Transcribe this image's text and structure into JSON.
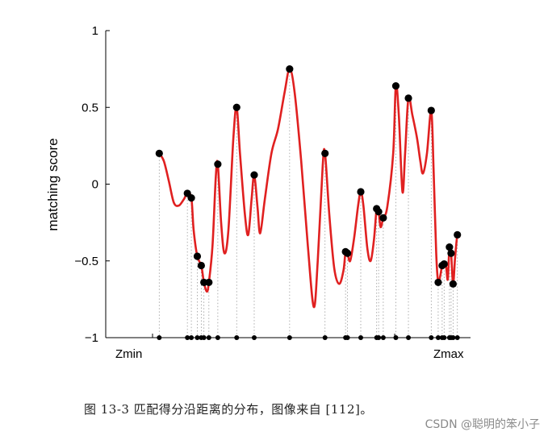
{
  "caption": "图 13-3  匹配得分沿距离的分布，图像来自 [112]。",
  "watermark": "CSDN @聪明的笨小子",
  "chart_data": {
    "type": "line",
    "title": "",
    "xlabel": "",
    "ylabel": "matching score",
    "ylim": [
      -1,
      1
    ],
    "xlim": [
      0,
      100
    ],
    "yticks": [
      -1,
      -0.5,
      0,
      0.5,
      1
    ],
    "ytick_labels": [
      "−1",
      "−0.5",
      "0",
      "0.5",
      "1"
    ],
    "x_end_labels": {
      "start": "Zmin",
      "end": "Zmax"
    },
    "grid": false,
    "colors": {
      "curve": "#e02020",
      "peaks": "#000000",
      "baseline_markers": "#000000",
      "stems": "#9a9a9a"
    },
    "series": [
      {
        "values": [
          [
            9.1,
            0.2
          ],
          [
            10.5,
            0.15
          ],
          [
            12,
            0.02
          ],
          [
            13.5,
            -0.12
          ],
          [
            15,
            -0.14
          ],
          [
            16.5,
            -0.1
          ],
          [
            17.6,
            -0.06
          ],
          [
            18.8,
            -0.09
          ],
          [
            19.5,
            -0.3
          ],
          [
            20.6,
            -0.47
          ],
          [
            21.8,
            -0.53
          ],
          [
            22.6,
            -0.64
          ],
          [
            23.5,
            -0.7
          ],
          [
            24.1,
            -0.64
          ],
          [
            25.2,
            -0.4
          ],
          [
            26.2,
            0.05
          ],
          [
            26.8,
            0.13
          ],
          [
            27.8,
            -0.25
          ],
          [
            28.8,
            -0.45
          ],
          [
            30,
            -0.3
          ],
          [
            31.5,
            0.3
          ],
          [
            32.5,
            0.5
          ],
          [
            33.5,
            0.2
          ],
          [
            35,
            -0.2
          ],
          [
            36,
            -0.33
          ],
          [
            37,
            -0.1
          ],
          [
            37.8,
            0.06
          ],
          [
            38.8,
            -0.15
          ],
          [
            39.6,
            -0.32
          ],
          [
            41,
            -0.1
          ],
          [
            43,
            0.2
          ],
          [
            45,
            0.36
          ],
          [
            47,
            0.6
          ],
          [
            48.5,
            0.75
          ],
          [
            50,
            0.6
          ],
          [
            52,
            0.15
          ],
          [
            54,
            -0.4
          ],
          [
            55.8,
            -0.8
          ],
          [
            57,
            -0.5
          ],
          [
            58.5,
            0.12
          ],
          [
            59.2,
            0.2
          ],
          [
            60.5,
            -0.2
          ],
          [
            62,
            -0.55
          ],
          [
            63.5,
            -0.65
          ],
          [
            64.8,
            -0.56
          ],
          [
            65.4,
            -0.44
          ],
          [
            66,
            -0.45
          ],
          [
            66.8,
            -0.5
          ],
          [
            68,
            -0.35
          ],
          [
            69.2,
            -0.14
          ],
          [
            70,
            -0.05
          ],
          [
            70.8,
            -0.14
          ],
          [
            72,
            -0.42
          ],
          [
            73,
            -0.5
          ],
          [
            74,
            -0.36
          ],
          [
            74.8,
            -0.16
          ],
          [
            75.4,
            -0.18
          ],
          [
            76,
            -0.28
          ],
          [
            76.8,
            -0.22
          ],
          [
            78,
            -0.15
          ],
          [
            79.8,
            0.2
          ],
          [
            80.6,
            0.64
          ],
          [
            81.5,
            0.45
          ],
          [
            82.6,
            -0.05
          ],
          [
            83.4,
            0.2
          ],
          [
            84.4,
            0.56
          ],
          [
            85.6,
            0.45
          ],
          [
            87,
            0.3
          ],
          [
            88,
            0.15
          ],
          [
            88.8,
            0.07
          ],
          [
            90,
            0.2
          ],
          [
            91.3,
            0.48
          ],
          [
            92,
            0.1
          ],
          [
            92.8,
            -0.45
          ],
          [
            93.4,
            -0.64
          ],
          [
            94,
            -0.6
          ],
          [
            94.6,
            -0.53
          ],
          [
            95.2,
            -0.52
          ],
          [
            95.8,
            -0.54
          ],
          [
            96.3,
            -0.62
          ],
          [
            96.8,
            -0.41
          ],
          [
            97.3,
            -0.45
          ],
          [
            97.9,
            -0.65
          ],
          [
            98.5,
            -0.48
          ],
          [
            99.2,
            -0.33
          ],
          [
            99.8,
            -0.35
          ]
        ]
      }
    ],
    "peaks": [
      [
        9.1,
        0.2
      ],
      [
        17.6,
        -0.06
      ],
      [
        18.8,
        -0.09
      ],
      [
        20.6,
        -0.47
      ],
      [
        21.8,
        -0.53
      ],
      [
        22.6,
        -0.64
      ],
      [
        24.1,
        -0.64
      ],
      [
        26.8,
        0.13
      ],
      [
        32.5,
        0.5
      ],
      [
        37.8,
        0.06
      ],
      [
        48.5,
        0.75
      ],
      [
        59.2,
        0.2
      ],
      [
        65.4,
        -0.44
      ],
      [
        66,
        -0.45
      ],
      [
        70,
        -0.05
      ],
      [
        74.8,
        -0.16
      ],
      [
        75.4,
        -0.18
      ],
      [
        76.8,
        -0.22
      ],
      [
        80.6,
        0.64
      ],
      [
        84.4,
        0.56
      ],
      [
        91.3,
        0.48
      ],
      [
        93.4,
        -0.64
      ],
      [
        94.6,
        -0.53
      ],
      [
        95.2,
        -0.52
      ],
      [
        96.8,
        -0.41
      ],
      [
        97.3,
        -0.45
      ],
      [
        97.9,
        -0.65
      ],
      [
        99.2,
        -0.33
      ]
    ]
  }
}
